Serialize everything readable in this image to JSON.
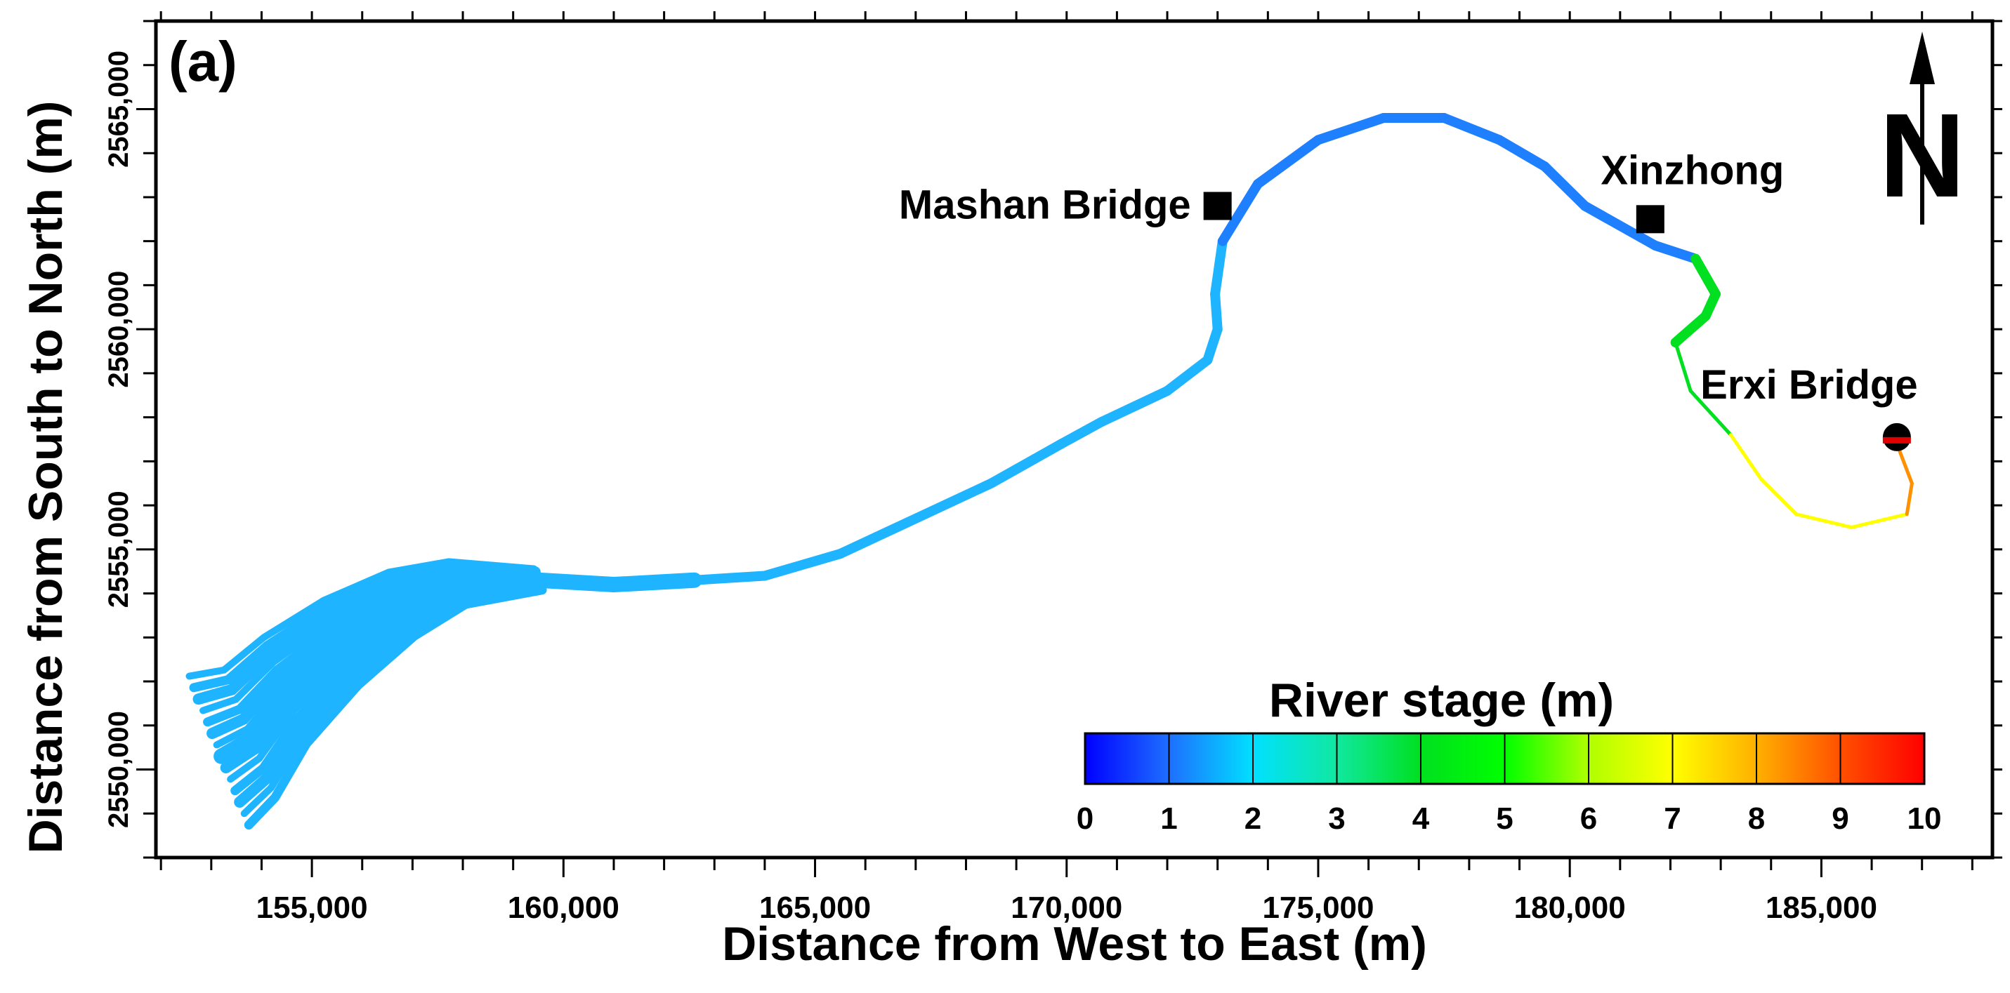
{
  "chart_data": {
    "type": "map",
    "panel_label": "(a)",
    "xlabel": "Distance from West to East (m)",
    "ylabel": "Distance from  South to North (m)",
    "xlim": [
      151900,
      188400
    ],
    "ylim": [
      2548000,
      2567000
    ],
    "x_ticks": [
      155000,
      160000,
      165000,
      170000,
      175000,
      180000,
      185000
    ],
    "x_tick_labels": [
      "155,000",
      "160,000",
      "165,000",
      "170,000",
      "175,000",
      "180,000",
      "185,000"
    ],
    "y_ticks": [
      2550000,
      2555000,
      2560000,
      2565000
    ],
    "y_tick_labels": [
      "2550,000",
      "2555,000",
      "2560,000",
      "2565,000"
    ],
    "north_arrow": "N",
    "colorbar": {
      "title": "River stage (m)",
      "min": 0,
      "max": 10,
      "tick_labels": [
        "0",
        "1",
        "2",
        "3",
        "4",
        "5",
        "6",
        "7",
        "8",
        "9",
        "10"
      ],
      "colors": [
        "#0000ff",
        "#1e6fff",
        "#00e0ff",
        "#10e8a0",
        "#00e020",
        "#00ff00",
        "#b0ff00",
        "#ffff00",
        "#ffb000",
        "#ff5000",
        "#ff0000"
      ]
    },
    "river_color_stops": [
      {
        "stage": 1.6,
        "color": "#1eb4ff"
      },
      {
        "stage": 1.4,
        "color": "#1e7fff"
      },
      {
        "stage": 5.0,
        "color": "#00e020"
      },
      {
        "stage": 7.5,
        "color": "#ffff00"
      },
      {
        "stage": 8.5,
        "color": "#ff9000"
      },
      {
        "stage": 10.0,
        "color": "#ff0000"
      }
    ],
    "river_centerline": [
      [
        153200,
        2550300
      ],
      [
        153800,
        2550700
      ],
      [
        154500,
        2551700
      ],
      [
        155600,
        2552800
      ],
      [
        156800,
        2553700
      ],
      [
        157900,
        2554200
      ],
      [
        159500,
        2554300
      ],
      [
        161000,
        2554200
      ],
      [
        162600,
        2554300
      ],
      [
        164000,
        2554400
      ],
      [
        165500,
        2554900
      ],
      [
        167000,
        2555700
      ],
      [
        168500,
        2556500
      ],
      [
        169900,
        2557400
      ],
      [
        170700,
        2557900
      ],
      [
        172000,
        2558600
      ],
      [
        172800,
        2559300
      ],
      [
        173000,
        2560000
      ],
      [
        172950,
        2560800
      ],
      [
        173100,
        2562000
      ],
      [
        173800,
        2563300
      ],
      [
        175000,
        2564300
      ],
      [
        176300,
        2564800
      ],
      [
        177500,
        2564800
      ],
      [
        178600,
        2564300
      ],
      [
        179500,
        2563700
      ],
      [
        180300,
        2562800
      ],
      [
        181700,
        2561900
      ],
      [
        182500,
        2561600
      ],
      [
        182900,
        2560800
      ],
      [
        182700,
        2560300
      ],
      [
        182100,
        2559700
      ],
      [
        182400,
        2558600
      ],
      [
        183200,
        2557600
      ],
      [
        183800,
        2556600
      ],
      [
        184500,
        2555800
      ],
      [
        185600,
        2555500
      ],
      [
        186700,
        2555800
      ],
      [
        186800,
        2556500
      ],
      [
        186500,
        2557400
      ]
    ],
    "markers": [
      {
        "label": "Mashan Bridge",
        "x": 173000,
        "y": 2562800,
        "shape": "square"
      },
      {
        "label": "Xinzhong",
        "x": 181600,
        "y": 2562500,
        "shape": "square"
      },
      {
        "label": "Erxi Bridge",
        "x": 186500,
        "y": 2557550,
        "shape": "circle"
      }
    ],
    "grid": false
  }
}
